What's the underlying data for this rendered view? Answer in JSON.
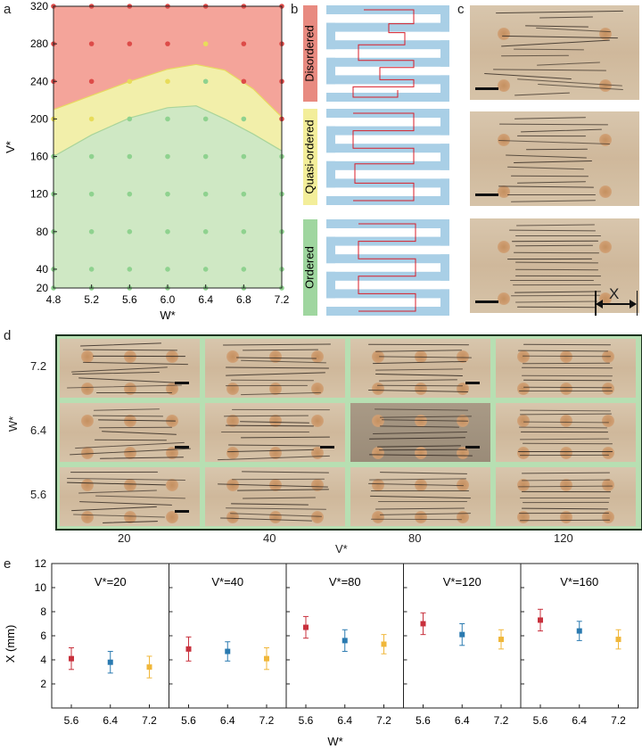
{
  "panel_letters": {
    "a": "a",
    "b": "b",
    "c": "c",
    "d": "d",
    "e": "e"
  },
  "colors": {
    "disordered": "#e88a80",
    "quasi": "#f3ee9a",
    "ordered": "#9fd69f",
    "red": "#c8303c",
    "blue": "#2a7ab0",
    "yellow": "#f0b73a",
    "region_red": "#f4a49a",
    "region_yellow": "#f2efaa",
    "region_green": "#cfe8c4",
    "channel": "#a9cfe6",
    "path": "#d81e2a",
    "cell_border": "#b7dfb2"
  },
  "chart_data": [
    {
      "id": "a",
      "type": "scatter",
      "title": "",
      "xlabel": "W*",
      "ylabel": "V*",
      "xlim": [
        4.8,
        7.2
      ],
      "ylim": [
        20,
        320
      ],
      "xticks": [
        "4.8",
        "5.2",
        "5.6",
        "6.0",
        "6.4",
        "6.8",
        "7.2"
      ],
      "yticks": [
        "20",
        "40",
        "80",
        "120",
        "160",
        "200",
        "240",
        "280",
        "320"
      ],
      "x": [
        4.8,
        5.2,
        5.6,
        6.0,
        6.4,
        6.8,
        7.2
      ],
      "grid_rows": [
        {
          "v": 320,
          "states": [
            "r",
            "r",
            "r",
            "r",
            "r",
            "r",
            "r"
          ]
        },
        {
          "v": 280,
          "states": [
            "r",
            "r",
            "r",
            "r",
            "y",
            "r",
            "r"
          ]
        },
        {
          "v": 240,
          "states": [
            "r",
            "r",
            "y",
            "y",
            "g",
            "r",
            "r"
          ]
        },
        {
          "v": 200,
          "states": [
            "y",
            "y",
            "g",
            "g",
            "g",
            "g",
            "r"
          ]
        },
        {
          "v": 160,
          "states": [
            "g",
            "g",
            "g",
            "g",
            "g",
            "g",
            "g"
          ]
        },
        {
          "v": 120,
          "states": [
            "g",
            "g",
            "g",
            "g",
            "g",
            "g",
            "g"
          ]
        },
        {
          "v": 80,
          "states": [
            "g",
            "g",
            "g",
            "g",
            "g",
            "g",
            "g"
          ]
        },
        {
          "v": 40,
          "states": [
            "g",
            "g",
            "g",
            "g",
            "g",
            "g",
            "g"
          ]
        },
        {
          "v": 20,
          "states": [
            "g",
            "g",
            "g",
            "g",
            "g",
            "g",
            "g"
          ]
        }
      ],
      "upper_boundary": [
        [
          4.8,
          210
        ],
        [
          5.2,
          225
        ],
        [
          5.6,
          240
        ],
        [
          6.0,
          253
        ],
        [
          6.3,
          258
        ],
        [
          6.6,
          252
        ],
        [
          6.9,
          232
        ],
        [
          7.2,
          202
        ]
      ],
      "lower_boundary": [
        [
          4.8,
          160
        ],
        [
          5.2,
          183
        ],
        [
          5.6,
          201
        ],
        [
          6.0,
          212
        ],
        [
          6.3,
          214
        ],
        [
          6.6,
          200
        ],
        [
          6.9,
          184
        ],
        [
          7.2,
          166
        ]
      ]
    },
    {
      "id": "e",
      "type": "scatter",
      "title": "",
      "ylabel": "X (mm)",
      "xlabel": "W*",
      "ylim": [
        0,
        12
      ],
      "yticks": [
        "2",
        "4",
        "6",
        "8",
        "10",
        "12"
      ],
      "categories": [
        "5.6",
        "6.4",
        "7.2"
      ],
      "subplots": [
        {
          "label": "V*=20",
          "values": [
            4.1,
            3.8,
            3.4
          ],
          "errors": [
            0.9,
            0.9,
            0.9
          ]
        },
        {
          "label": "V*=40",
          "values": [
            4.9,
            4.7,
            4.1
          ],
          "errors": [
            1.0,
            0.8,
            0.9
          ]
        },
        {
          "label": "V*=80",
          "values": [
            6.7,
            5.6,
            5.3
          ],
          "errors": [
            0.9,
            0.9,
            0.8
          ]
        },
        {
          "label": "V*=120",
          "values": [
            7.0,
            6.1,
            5.7
          ],
          "errors": [
            0.9,
            0.9,
            0.8
          ]
        },
        {
          "label": "V*=160",
          "values": [
            7.3,
            6.4,
            5.7
          ],
          "errors": [
            0.9,
            0.8,
            0.8
          ]
        }
      ]
    }
  ],
  "panel_b": {
    "labels": [
      "Disordered",
      "Quasi-ordered",
      "Ordered"
    ]
  },
  "panel_c": {
    "dimension_label": "X"
  },
  "panel_d": {
    "ylabel": "W*",
    "xlabel": "V*",
    "row_labels": [
      "7.2",
      "6.4",
      "5.6"
    ],
    "col_labels": [
      "20",
      "40",
      "80",
      "120"
    ]
  }
}
